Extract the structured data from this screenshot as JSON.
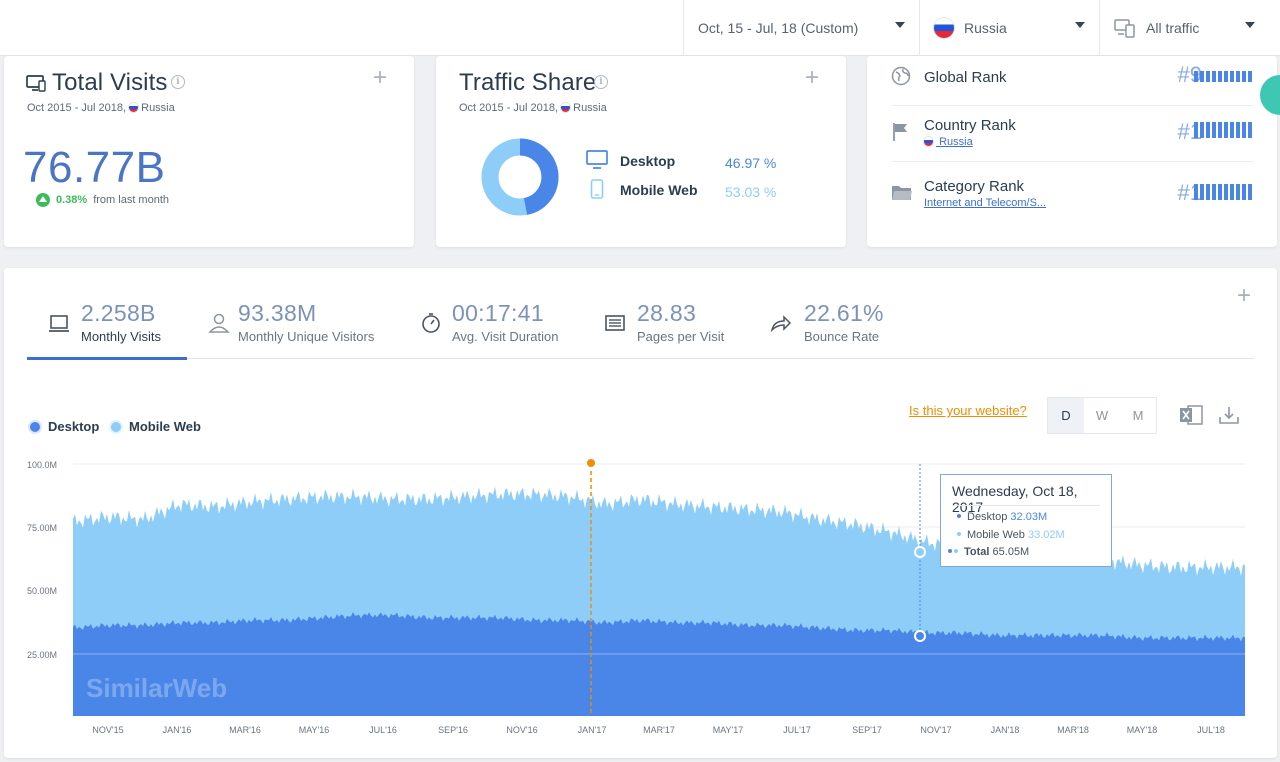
{
  "filters": {
    "date_range": "Oct, 15 - Jul, 18 (Custom)",
    "country": "Russia",
    "traffic": "All traffic"
  },
  "total_visits": {
    "title": "Total Visits",
    "period": "Oct 2015 - Jul 2018,",
    "country": "Russia",
    "value": "76.77B",
    "change_pct": "0.38%",
    "change_text": "from last month"
  },
  "traffic_share": {
    "title": "Traffic Share",
    "period": "Oct 2015 - Jul 2018,",
    "country": "Russia",
    "desktop_label": "Desktop",
    "desktop_value": "46.97 %",
    "mobile_label": "Mobile Web",
    "mobile_value": "53.03 %",
    "desktop_fraction": 0.4697
  },
  "ranks": {
    "global_label": "Global Rank",
    "global_value": "#9",
    "country_label": "Country Rank",
    "country_link": "Russia",
    "country_value": "#1",
    "category_label": "Category Rank",
    "category_link": "Internet and Telecom/S...",
    "category_value": "#1"
  },
  "metrics": [
    {
      "value": "2.258B",
      "label": "Monthly Visits"
    },
    {
      "value": "93.38M",
      "label": "Monthly Unique Visitors"
    },
    {
      "value": "00:17:41",
      "label": "Avg. Visit Duration"
    },
    {
      "value": "28.83",
      "label": "Pages per Visit"
    },
    {
      "value": "22.61%",
      "label": "Bounce Rate"
    }
  ],
  "legend": {
    "desktop": "Desktop",
    "mobile": "Mobile Web"
  },
  "website_link": "Is this your website?",
  "granularity": {
    "day": "D",
    "week": "W",
    "month": "M"
  },
  "tooltip": {
    "date": "Wednesday, Oct 18, 2017",
    "desktop_label": "Desktop",
    "desktop_value": "32.03M",
    "mobile_label": "Mobile Web",
    "mobile_value": "33.02M",
    "total_label": "Total",
    "total_value": "65.05M"
  },
  "watermark": "SimilarWeb",
  "colors": {
    "desktop": "#4a86e8",
    "mobile": "#8ecdf8",
    "accent": "#f28c00"
  },
  "chart_data": {
    "type": "area",
    "stacked": true,
    "y_ticks": [
      "100.0M",
      "75.00M",
      "50.00M",
      "25.00M"
    ],
    "ylim": [
      0,
      100
    ],
    "x_ticks": [
      "NOV'15",
      "JAN'16",
      "MAR'16",
      "MAY'16",
      "JUL'16",
      "SEP'16",
      "NOV'16",
      "JAN'17",
      "MAR'17",
      "MAY'17",
      "JUL'17",
      "SEP'17",
      "NOV'17",
      "JAN'18",
      "MAR'18",
      "MAY'18",
      "JUL'18"
    ],
    "x": [
      "2015-10",
      "2015-11",
      "2015-12",
      "2016-01",
      "2016-02",
      "2016-03",
      "2016-04",
      "2016-05",
      "2016-06",
      "2016-07",
      "2016-08",
      "2016-09",
      "2016-10",
      "2016-11",
      "2016-12",
      "2017-01",
      "2017-02",
      "2017-03",
      "2017-04",
      "2017-05",
      "2017-06",
      "2017-07",
      "2017-08",
      "2017-09",
      "2017-10",
      "2017-11",
      "2017-12",
      "2018-01",
      "2018-02",
      "2018-03",
      "2018-04",
      "2018-05",
      "2018-06",
      "2018-07"
    ],
    "series": [
      {
        "name": "Desktop",
        "values": [
          35,
          36,
          36,
          37,
          37,
          38,
          38,
          39,
          40,
          40,
          39,
          39,
          39,
          38,
          38,
          37,
          38,
          37,
          37,
          36,
          36,
          35,
          34,
          34,
          33,
          33,
          32,
          32,
          32,
          32,
          31,
          31,
          31,
          31
        ]
      },
      {
        "name": "Mobile Web",
        "values": [
          42,
          43,
          42,
          47,
          46,
          47,
          48,
          48,
          47,
          46,
          47,
          48,
          49,
          50,
          49,
          47,
          48,
          47,
          46,
          46,
          45,
          43,
          42,
          39,
          36,
          34,
          33,
          33,
          32,
          30,
          29,
          28,
          28,
          28
        ]
      }
    ],
    "annotation_month": "2016-12"
  }
}
